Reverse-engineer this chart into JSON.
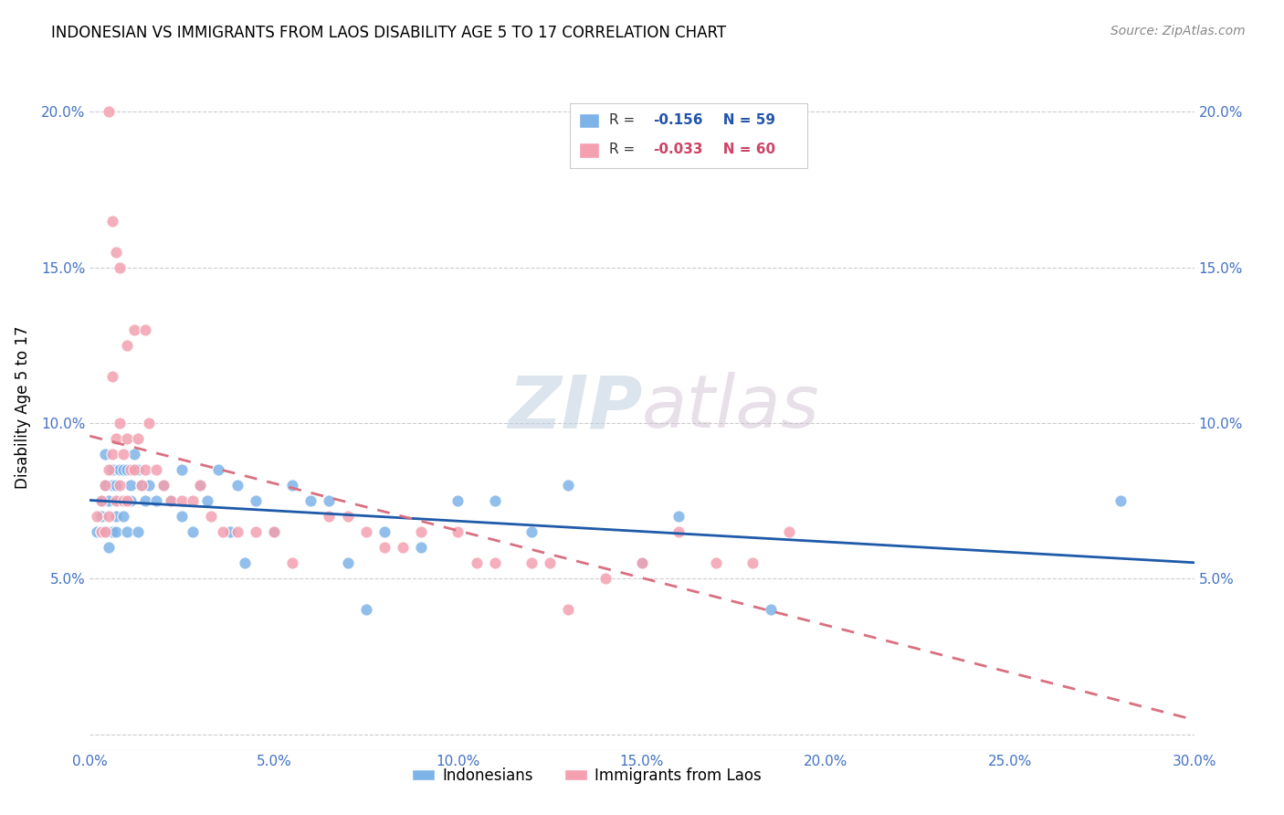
{
  "title": "INDONESIAN VS IMMIGRANTS FROM LAOS DISABILITY AGE 5 TO 17 CORRELATION CHART",
  "source": "Source: ZipAtlas.com",
  "ylabel": "Disability Age 5 to 17",
  "xlim": [
    0.0,
    0.3
  ],
  "ylim": [
    -0.005,
    0.215
  ],
  "xticks": [
    0.0,
    0.05,
    0.1,
    0.15,
    0.2,
    0.25,
    0.3
  ],
  "yticks": [
    0.0,
    0.05,
    0.1,
    0.15,
    0.2
  ],
  "ytick_labels_left": [
    "",
    "5.0%",
    "10.0%",
    "15.0%",
    "20.0%"
  ],
  "ytick_labels_right": [
    "",
    "5.0%",
    "10.0%",
    "15.0%",
    "20.0%"
  ],
  "xtick_labels": [
    "0.0%",
    "",
    "5.0%",
    "",
    "10.0%",
    "",
    "15.0%",
    "",
    "20.0%",
    "",
    "25.0%",
    "",
    "30.0%"
  ],
  "xtick_positions": [
    0.0,
    0.025,
    0.05,
    0.075,
    0.1,
    0.125,
    0.15,
    0.175,
    0.2,
    0.225,
    0.25,
    0.275,
    0.3
  ],
  "indonesian_color": "#7EB3E8",
  "laos_color": "#F4A0B0",
  "trend_indonesian_color": "#1E5AA8",
  "trend_laos_color": "#D97080",
  "legend_r_indonesian": "R =",
  "legend_v_indonesian": "-0.156",
  "legend_n_indonesian": "N = 59",
  "legend_r_laos": "R =",
  "legend_v_laos": "-0.033",
  "legend_n_laos": "N = 60",
  "watermark_zip": "ZIP",
  "watermark_atlas": "atlas",
  "indonesian_x": [
    0.002,
    0.003,
    0.003,
    0.004,
    0.004,
    0.004,
    0.005,
    0.005,
    0.006,
    0.006,
    0.006,
    0.007,
    0.007,
    0.007,
    0.008,
    0.008,
    0.009,
    0.009,
    0.009,
    0.01,
    0.01,
    0.011,
    0.011,
    0.012,
    0.013,
    0.013,
    0.014,
    0.015,
    0.016,
    0.018,
    0.02,
    0.022,
    0.025,
    0.025,
    0.028,
    0.03,
    0.032,
    0.035,
    0.038,
    0.04,
    0.042,
    0.045,
    0.05,
    0.055,
    0.06,
    0.065,
    0.07,
    0.075,
    0.08,
    0.09,
    0.1,
    0.11,
    0.12,
    0.13,
    0.15,
    0.16,
    0.185,
    0.28,
    0.003
  ],
  "indonesian_y": [
    0.065,
    0.07,
    0.075,
    0.065,
    0.08,
    0.09,
    0.075,
    0.06,
    0.08,
    0.085,
    0.065,
    0.07,
    0.08,
    0.065,
    0.085,
    0.075,
    0.085,
    0.075,
    0.07,
    0.085,
    0.065,
    0.08,
    0.075,
    0.09,
    0.085,
    0.065,
    0.08,
    0.075,
    0.08,
    0.075,
    0.08,
    0.075,
    0.085,
    0.07,
    0.065,
    0.08,
    0.075,
    0.085,
    0.065,
    0.08,
    0.055,
    0.075,
    0.065,
    0.08,
    0.075,
    0.075,
    0.055,
    0.04,
    0.065,
    0.06,
    0.075,
    0.075,
    0.065,
    0.08,
    0.055,
    0.07,
    0.04,
    0.075,
    0.065
  ],
  "laos_x": [
    0.002,
    0.003,
    0.003,
    0.004,
    0.004,
    0.005,
    0.005,
    0.006,
    0.006,
    0.007,
    0.007,
    0.008,
    0.008,
    0.009,
    0.009,
    0.01,
    0.01,
    0.011,
    0.012,
    0.013,
    0.014,
    0.015,
    0.016,
    0.018,
    0.02,
    0.022,
    0.025,
    0.028,
    0.03,
    0.033,
    0.036,
    0.04,
    0.045,
    0.05,
    0.055,
    0.065,
    0.07,
    0.075,
    0.08,
    0.085,
    0.09,
    0.1,
    0.105,
    0.11,
    0.12,
    0.125,
    0.13,
    0.14,
    0.15,
    0.16,
    0.17,
    0.18,
    0.19,
    0.005,
    0.006,
    0.007,
    0.008,
    0.01,
    0.012,
    0.015
  ],
  "laos_y": [
    0.07,
    0.075,
    0.065,
    0.08,
    0.065,
    0.085,
    0.07,
    0.115,
    0.09,
    0.095,
    0.075,
    0.1,
    0.08,
    0.09,
    0.075,
    0.095,
    0.075,
    0.085,
    0.085,
    0.095,
    0.08,
    0.085,
    0.1,
    0.085,
    0.08,
    0.075,
    0.075,
    0.075,
    0.08,
    0.07,
    0.065,
    0.065,
    0.065,
    0.065,
    0.055,
    0.07,
    0.07,
    0.065,
    0.06,
    0.06,
    0.065,
    0.065,
    0.055,
    0.055,
    0.055,
    0.055,
    0.04,
    0.05,
    0.055,
    0.065,
    0.055,
    0.055,
    0.065,
    0.2,
    0.165,
    0.155,
    0.15,
    0.125,
    0.13,
    0.13
  ]
}
